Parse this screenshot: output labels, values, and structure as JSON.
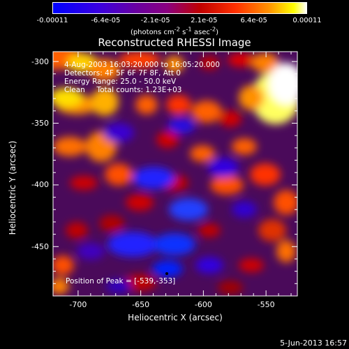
{
  "colorbar": {
    "ticks": [
      "-0.00011",
      "-6.4e-05",
      "-2.1e-05",
      "2.1e-05",
      "6.4e-05",
      "0.00011"
    ],
    "tick_values": [
      -0.00011,
      -6.4e-05,
      -2.1e-05,
      2.1e-05,
      6.4e-05,
      0.00011
    ],
    "unit_label_html": "(photons cm<sup>-2</sup> s<sup>-1</sup> asec<sup>-2</sup>)"
  },
  "image": {
    "title": "Reconstructed RHESSI Image",
    "annotations": [
      "4-Aug-2003 16:03:20.000 to 16:05:20.000",
      "Detectors: 4F 5F 6F 7F 8F, Att 0",
      "Energy Range: 25.0 - 50.0 keV",
      "Clean     Total counts: 1.23E+03"
    ],
    "peak_label": "Position of Peak = [-539,-353]",
    "footer_date": "5-Jun-2013 16:57"
  },
  "chart_data": {
    "type": "heatmap",
    "title": "Reconstructed RHESSI Image",
    "xlabel": "Heliocentric X (arcsec)",
    "ylabel": "Heliocentric Y (arcsec)",
    "xlim": [
      -720,
      -525
    ],
    "ylim": [
      -490,
      -292
    ],
    "xticks": [
      -700,
      -650,
      -600,
      -550
    ],
    "yticks": [
      -300,
      -350,
      -400,
      -450
    ],
    "x_tick_labels": [
      "-700",
      "-650",
      "-600",
      "-550"
    ],
    "y_tick_labels": [
      "-300",
      "-350",
      "-400",
      "-450"
    ],
    "colorscale_range": [
      -0.00011,
      0.00011
    ],
    "peak_position": [
      -539,
      -353
    ],
    "colors": {
      "low": "#0000ff",
      "mid": "#800080",
      "high": "#ffff00",
      "axis": "#ffffff"
    }
  }
}
